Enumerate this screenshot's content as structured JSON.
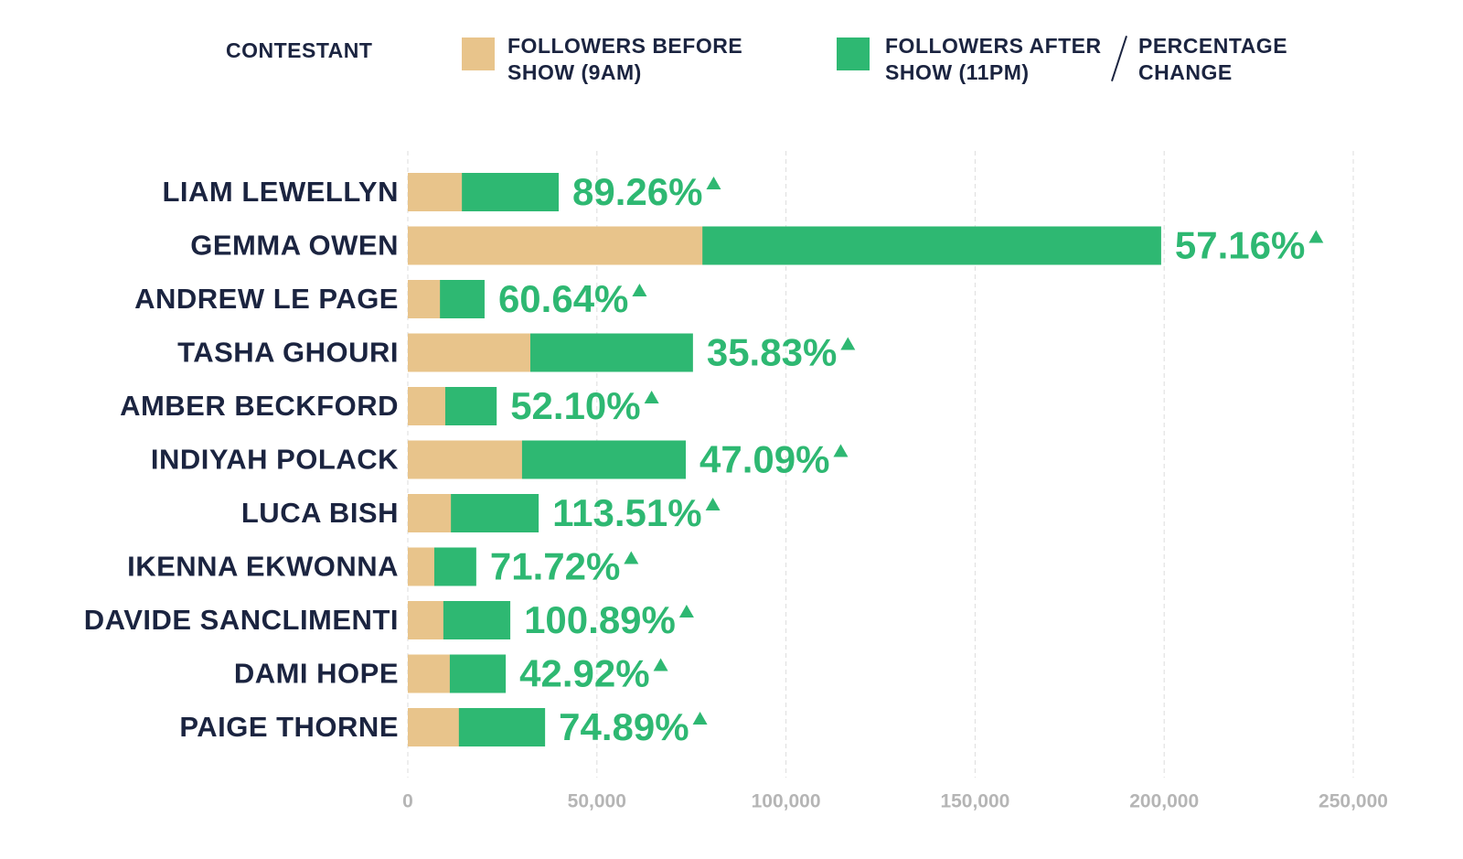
{
  "chart_data": {
    "type": "bar",
    "orientation": "horizontal",
    "legend_title": "CONTESTANT",
    "categories": [
      "LIAM LEWELLYN",
      "GEMMA OWEN",
      "ANDREW LE PAGE",
      "TASHA GHOURI",
      "AMBER BECKFORD",
      "INDIYAH POLACK",
      "LUCA BISH",
      "IKENNA EKWONNA",
      "DAVIDE SANCLIMENTI",
      "DAMI HOPE",
      "PAIGE THORNE"
    ],
    "series": [
      {
        "name": "FOLLOWERS BEFORE SHOW (9AM)",
        "color": "#e8c48b",
        "values": [
          14300,
          77900,
          8500,
          32400,
          9900,
          30200,
          11400,
          7000,
          9400,
          11100,
          13500
        ]
      },
      {
        "name": "FOLLOWERS AFTER SHOW (11PM)",
        "color": "#2eb872",
        "values": [
          39900,
          199200,
          20300,
          75400,
          23500,
          73500,
          34600,
          18100,
          27100,
          25900,
          36300
        ]
      }
    ],
    "percentage_change": {
      "name": "PERCENTAGE CHANGE",
      "color": "#2eb872",
      "values": [
        89.26,
        57.16,
        60.64,
        35.83,
        52.1,
        47.09,
        113.51,
        71.72,
        100.89,
        42.92,
        74.89
      ],
      "value_labels": [
        "89.26%",
        "57.16%",
        "60.64%",
        "35.83%",
        "52.10%",
        "47.09%",
        "113.51%",
        "71.72%",
        "100.89%",
        "42.92%",
        "74.89%"
      ]
    },
    "xlim": [
      0,
      250000
    ],
    "xticks": [
      0,
      {
        "value": 50000,
        "label": "50,000"
      },
      {
        "value": 100000,
        "label": "100,000"
      },
      {
        "value": 150000,
        "label": "150,000"
      },
      {
        "value": 200000,
        "label": "200,000"
      },
      {
        "value": 250000,
        "label": "250,000"
      }
    ],
    "grid": true
  }
}
